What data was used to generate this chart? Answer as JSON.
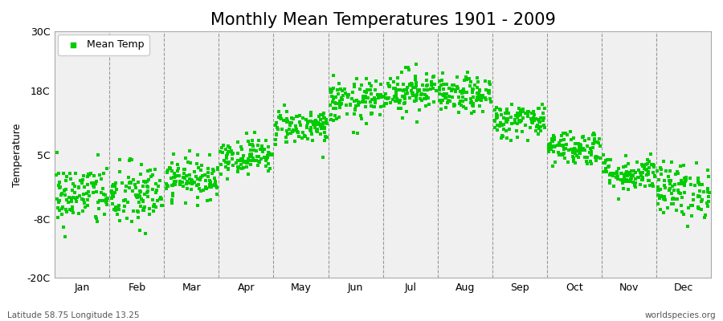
{
  "title": "Monthly Mean Temperatures 1901 - 2009",
  "ylabel": "Temperature",
  "xlabel_bottom_left": "Latitude 58.75 Longitude 13.25",
  "xlabel_bottom_right": "worldspecies.org",
  "yticks": [
    -20,
    -8,
    5,
    18,
    30
  ],
  "ytick_labels": [
    "-20C",
    "-8C",
    "5C",
    "18C",
    "30C"
  ],
  "ylim": [
    -20,
    30
  ],
  "months": [
    "Jan",
    "Feb",
    "Mar",
    "Apr",
    "May",
    "Jun",
    "Jul",
    "Aug",
    "Sep",
    "Oct",
    "Nov",
    "Dec"
  ],
  "dot_color": "#00CC00",
  "plot_bg_color": "#F0F0F0",
  "figure_bg": "#FFFFFF",
  "title_fontsize": 15,
  "axis_label_fontsize": 9,
  "tick_fontsize": 9,
  "legend_label": "Mean Temp",
  "monthly_means": [
    -3.2,
    -3.5,
    0.2,
    4.8,
    10.8,
    15.8,
    18.0,
    17.0,
    12.0,
    6.5,
    1.2,
    -2.2
  ],
  "monthly_stds": [
    3.2,
    3.5,
    2.0,
    1.8,
    1.8,
    2.2,
    2.2,
    1.8,
    1.8,
    1.8,
    1.8,
    2.8
  ],
  "n_years": 109,
  "seed": 42,
  "vline_color": "#999999",
  "spine_color": "#AAAAAA",
  "marker_size": 5
}
